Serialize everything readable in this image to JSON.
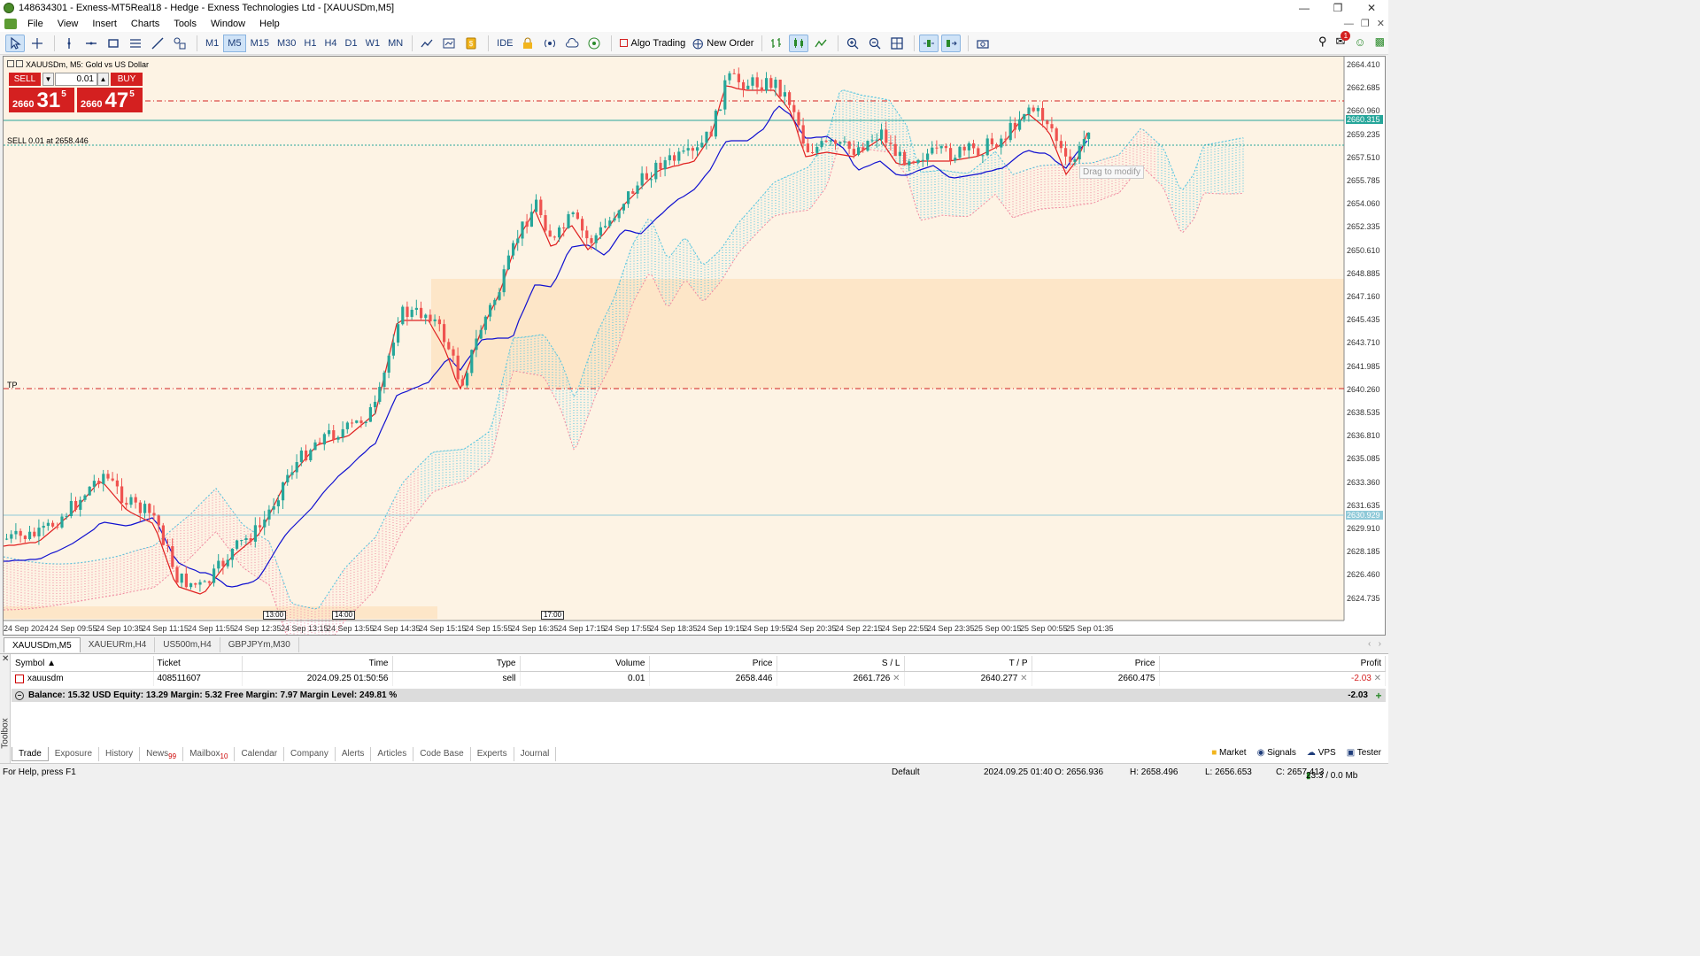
{
  "window": {
    "title": "148634301 - Exness-MT5Real18 - Hedge - Exness Technologies Ltd - [XAUUSDm,M5]"
  },
  "menu": {
    "items": [
      "File",
      "View",
      "Insert",
      "Charts",
      "Tools",
      "Window",
      "Help"
    ]
  },
  "toolbar": {
    "timeframes": [
      "M1",
      "M5",
      "M15",
      "M30",
      "H1",
      "H4",
      "D1",
      "W1",
      "MN"
    ],
    "active_timeframe": "M5",
    "ide_label": "IDE",
    "algo_trading_label": "Algo Trading",
    "new_order_label": "New Order",
    "notification_count": "1"
  },
  "chart": {
    "header": "XAUUSDm, M5:  Gold vs US Dollar",
    "one_click": {
      "sell_label": "SELL",
      "buy_label": "BUY",
      "volume": "0.01",
      "sell_price_prefix": "2660",
      "sell_price_big": "31",
      "sell_price_sup": "5",
      "buy_price_prefix": "2660",
      "buy_price_big": "47",
      "buy_price_sup": "5"
    },
    "position_label": "SELL 0.01 at 2658.446",
    "tp_label": "TP",
    "drag_tooltip": "Drag to modify",
    "price_tag_current": "2660.315",
    "price_tag_lower": "2630.929",
    "y_ticks": [
      "2664.410",
      "2662.685",
      "2660.960",
      "2659.235",
      "2657.510",
      "2655.785",
      "2654.060",
      "2652.335",
      "2650.610",
      "2648.885",
      "2647.160",
      "2645.435",
      "2643.710",
      "2641.985",
      "2640.260",
      "2638.535",
      "2636.810",
      "2635.085",
      "2633.360",
      "2631.635",
      "2629.910",
      "2628.185",
      "2626.460",
      "2624.735"
    ],
    "x_ticks": [
      "24 Sep 2024",
      "24 Sep 09:55",
      "24 Sep 10:35",
      "24 Sep 11:15",
      "24 Sep 11:55",
      "24 Sep 12:35",
      "24 Sep 13:15",
      "24 Sep 13:55",
      "24 Sep 14:35",
      "24 Sep 15:15",
      "24 Sep 15:55",
      "24 Sep 16:35",
      "24 Sep 17:15",
      "24 Sep 17:55",
      "24 Sep 18:35",
      "24 Sep 19:15",
      "24 Sep 19:55",
      "24 Sep 20:35",
      "24 Sep 22:15",
      "24 Sep 22:55",
      "24 Sep 23:35",
      "25 Sep 00:15",
      "25 Sep 00:55",
      "25 Sep 01:35"
    ],
    "time_markers": [
      "13:00",
      "14:00",
      "17:00"
    ],
    "colors": {
      "bull": "#26a69a",
      "bear": "#ef5350",
      "background": "#fdf3e4",
      "tenkan": "#e02020",
      "kijun": "#1010d0"
    }
  },
  "chart_tabs": {
    "items": [
      "XAUUSDm,M5",
      "XAUEURm,H4",
      "US500m,H4",
      "GBPJPYm,M30"
    ],
    "active": "XAUUSDm,M5"
  },
  "trade": {
    "columns": [
      "Symbol",
      "Ticket",
      "Time",
      "Type",
      "Volume",
      "Price",
      "S / L",
      "T / P",
      "Price",
      "Profit"
    ],
    "rows": [
      {
        "symbol": "xauusdm",
        "ticket": "408511607",
        "time": "2024.09.25 01:50:56",
        "type": "sell",
        "volume": "0.01",
        "price": "2658.446",
        "sl": "2661.726",
        "tp": "2640.277",
        "current": "2660.475",
        "profit": "-2.03"
      }
    ],
    "summary": "Balance: 15.32 USD  Equity: 13.29  Margin: 5.32  Free Margin: 7.97  Margin Level: 249.81 %",
    "summary_value": "-2.03"
  },
  "toolbox": {
    "label": "Toolbox",
    "tabs": [
      {
        "label": "Trade",
        "badge": ""
      },
      {
        "label": "Exposure",
        "badge": ""
      },
      {
        "label": "History",
        "badge": ""
      },
      {
        "label": "News",
        "badge": "99"
      },
      {
        "label": "Mailbox",
        "badge": "10"
      },
      {
        "label": "Calendar",
        "badge": ""
      },
      {
        "label": "Company",
        "badge": ""
      },
      {
        "label": "Alerts",
        "badge": ""
      },
      {
        "label": "Articles",
        "badge": ""
      },
      {
        "label": "Code Base",
        "badge": ""
      },
      {
        "label": "Experts",
        "badge": ""
      },
      {
        "label": "Journal",
        "badge": ""
      }
    ],
    "right": [
      "Market",
      "Signals",
      "VPS",
      "Tester"
    ]
  },
  "statusbar": {
    "help": "For Help, press F1",
    "profile": "Default",
    "datetime": "2024.09.25 01:40",
    "open": "O: 2656.936",
    "high": "H: 2658.496",
    "low": "L: 2656.653",
    "close": "C: 2657.413",
    "traffic": "23.3 / 0.0 Mb"
  }
}
